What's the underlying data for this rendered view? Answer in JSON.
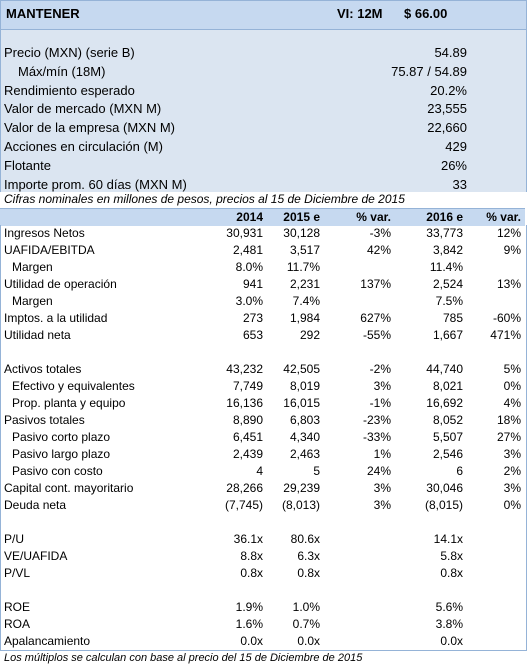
{
  "header": {
    "rating": "MANTENER",
    "vi": "VI: 12M",
    "price": "$ 66.00"
  },
  "summary": [
    {
      "label": "Precio (MXN) (serie B)",
      "value": "54.89"
    },
    {
      "label": "Máx/mín (18M)",
      "value": "75.87 / 54.89"
    },
    {
      "label": "Rendimiento esperado",
      "value": "20.2%"
    },
    {
      "label": "Valor de mercado (MXN M)",
      "value": "23,555"
    },
    {
      "label": "Valor de la empresa (MXN M)",
      "value": "22,660"
    },
    {
      "label": "Acciones en circulación (M)",
      "value": "429"
    },
    {
      "label": "Flotante",
      "value": "26%"
    },
    {
      "label": "Importe prom. 60 días (MXN M)",
      "value": "33"
    }
  ],
  "note": "Cifras nominales en millones de pesos, precios al 15 de Diciembre de 2015",
  "table": {
    "columns": [
      "2014",
      "2015 e",
      "% var.",
      "2016 e",
      "% var."
    ],
    "sections": [
      [
        {
          "label": "Ingresos Netos",
          "cells": [
            "30,931",
            "30,128",
            "-3%",
            "33,773",
            "12%"
          ]
        },
        {
          "label": "UAFIDA/EBITDA",
          "cells": [
            "2,481",
            "3,517",
            "42%",
            "3,842",
            "9%"
          ]
        },
        {
          "label": "Margen",
          "cells": [
            "8.0%",
            "11.7%",
            null,
            "11.4%",
            null
          ]
        },
        {
          "label": "Utilidad de operación",
          "cells": [
            "941",
            "2,231",
            "137%",
            "2,524",
            "13%"
          ]
        },
        {
          "label": "Margen",
          "cells": [
            "3.0%",
            "7.4%",
            null,
            "7.5%",
            null
          ]
        },
        {
          "label": "Imptos. a la utilidad",
          "cells": [
            "273",
            "1,984",
            "627%",
            "785",
            "-60%"
          ]
        },
        {
          "label": "Utilidad neta",
          "cells": [
            "653",
            "292",
            "-55%",
            "1,667",
            "471%"
          ]
        }
      ],
      [
        {
          "label": "Activos totales",
          "cells": [
            "43,232",
            "42,505",
            "-2%",
            "44,740",
            "5%"
          ]
        },
        {
          "label": "Efectivo y equivalentes",
          "cells": [
            "7,749",
            "8,019",
            "3%",
            "8,021",
            "0%"
          ]
        },
        {
          "label": "Prop. planta y equipo",
          "cells": [
            "16,136",
            "16,015",
            "-1%",
            "16,692",
            "4%"
          ]
        },
        {
          "label": "Pasivos totales",
          "cells": [
            "8,890",
            "6,803",
            "-23%",
            "8,052",
            "18%"
          ]
        },
        {
          "label": "Pasivo corto plazo",
          "cells": [
            "6,451",
            "4,340",
            "-33%",
            "5,507",
            "27%"
          ]
        },
        {
          "label": "Pasivo largo plazo",
          "cells": [
            "2,439",
            "2,463",
            "1%",
            "2,546",
            "3%"
          ]
        },
        {
          "label": "Pasivo con costo",
          "cells": [
            "4",
            "5",
            "24%",
            "6",
            "2%"
          ]
        },
        {
          "label": "Capital cont. mayoritario",
          "cells": [
            "28,266",
            "29,239",
            "3%",
            "30,046",
            "3%"
          ]
        },
        {
          "label": "Deuda neta",
          "cells": [
            "(7,745)",
            "(8,013)",
            "3%",
            "(8,015)",
            "0%"
          ]
        }
      ],
      [
        {
          "label": "P/U",
          "cells": [
            "36.1x",
            "80.6x",
            null,
            "14.1x",
            null
          ]
        },
        {
          "label": "VE/UAFIDA",
          "cells": [
            "8.8x",
            "6.3x",
            null,
            "5.8x",
            null
          ]
        },
        {
          "label": "P/VL",
          "cells": [
            "0.8x",
            "0.8x",
            null,
            "0.8x",
            null
          ]
        }
      ],
      [
        {
          "label": "ROE",
          "cells": [
            "1.9%",
            "1.0%",
            null,
            "5.6%",
            null
          ]
        },
        {
          "label": "ROA",
          "cells": [
            "1.6%",
            "0.7%",
            null,
            "3.8%",
            null
          ]
        },
        {
          "label": "Apalancamiento",
          "cells": [
            "0.0x",
            "0.0x",
            null,
            "0.0x",
            null
          ]
        }
      ]
    ]
  },
  "footer": "Los múltiplos se calculan con base al precio del 15 de Diciembre de 2015"
}
